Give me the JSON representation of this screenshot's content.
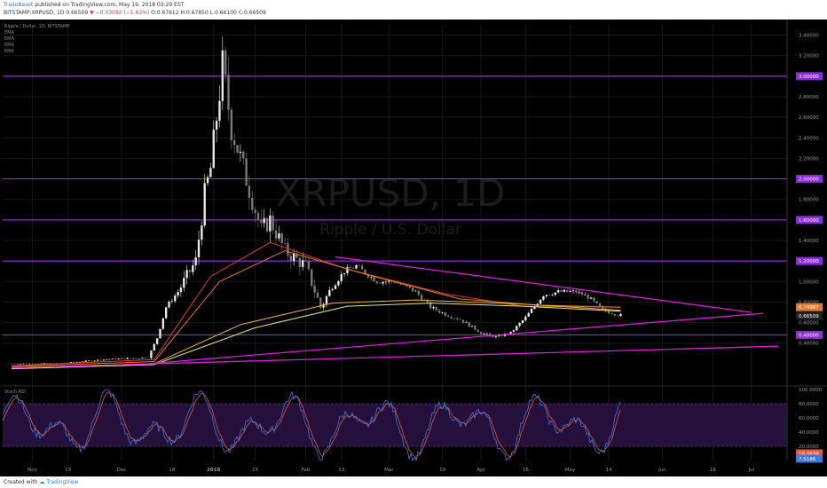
{
  "header": {
    "author": "TradeBeast",
    "published_text": "published on TradingView.com, May 19, 2018 03:29 EST",
    "symbol_line": "BITSTAMP:XRPUSD, 1D",
    "last_value": "0.66509",
    "change": "−0.03092 (−1.62%)",
    "ohlc": "O:0.67612 H:0.67850 L:0.66100 C:0.66509"
  },
  "legend": {
    "title": "Ripple / Dollar, 1D, BITSTAMP",
    "indicators": [
      "EMA",
      "EMA",
      "EMA",
      "EMA"
    ]
  },
  "watermark": {
    "symbol": "XRPUSD, 1D",
    "name": "Ripple / U.S. Dollar"
  },
  "oscillator": {
    "label": "Stoch RSI"
  },
  "footer": {
    "created_with": "Created with",
    "brand": "TradingView"
  },
  "colors": {
    "background": "#000000",
    "grid": "#171717",
    "candle_up": "#eaeaea",
    "candle_down": "#7a7a7a",
    "level_line": "#8a2be2",
    "trendline": "#d61fd6",
    "ema_red": "#e0411f",
    "ema_orange": "#e07a2b",
    "ema_gold": "#e8b830",
    "ema_yellow": "#f2e27a",
    "stoch_k": "#3a79e0",
    "stoch_d": "#e9583a",
    "stoch_band": "#24103a"
  },
  "chart_data": {
    "type": "candlestick",
    "symbol": "XRPUSD",
    "interval": "1D",
    "price_axis": {
      "ylim": [
        0.0,
        3.5
      ],
      "ticks": [
        "0.40000",
        "0.60000",
        "0.80000",
        "1.00000",
        "1.20000",
        "1.40000",
        "1.60000",
        "1.80000",
        "2.00000",
        "2.20000",
        "2.40000",
        "2.60000",
        "2.80000",
        "3.00000",
        "3.20000",
        "3.40000"
      ]
    },
    "time_axis": {
      "labels": [
        "Nov",
        "13",
        "Dec",
        "18",
        "2018",
        "15",
        "Feb",
        "13",
        "Mar",
        "19",
        "Apr",
        "16",
        "May",
        "14",
        "Jun",
        "18",
        "Jul"
      ]
    },
    "horizontal_levels": [
      "0.48000",
      "1.20000",
      "1.60000",
      "2.00000",
      "3.00000"
    ],
    "price_labels": [
      {
        "value": "0.74987",
        "color": "#e07a2b"
      },
      {
        "value": "0.66509",
        "color": "#222222"
      }
    ],
    "trendlines": [
      {
        "name": "upper",
        "from": [
          "2018-02-11",
          1.24
        ],
        "to": [
          "2018-07-01",
          0.7
        ]
      },
      {
        "name": "lower",
        "from": [
          "2017-12-10",
          0.2
        ],
        "to": [
          "2018-07-05",
          0.69
        ]
      },
      {
        "name": "base",
        "from": [
          "2017-10-25",
          0.16
        ],
        "to": [
          "2018-07-10",
          0.37
        ]
      }
    ],
    "anchors": [
      [
        "2017-10-25",
        0.2
      ],
      [
        "2017-11-10",
        0.2
      ],
      [
        "2017-11-25",
        0.24
      ],
      [
        "2017-12-10",
        0.26
      ],
      [
        "2017-12-13",
        0.45
      ],
      [
        "2017-12-16",
        0.75
      ],
      [
        "2017-12-20",
        0.9
      ],
      [
        "2017-12-23",
        1.05
      ],
      [
        "2017-12-26",
        1.2
      ],
      [
        "2017-12-29",
        1.85
      ],
      [
        "2017-12-31",
        2.1
      ],
      [
        "2018-01-04",
        3.1
      ],
      [
        "2018-01-07",
        2.5
      ],
      [
        "2018-01-12",
        2.0
      ],
      [
        "2018-01-17",
        1.5
      ],
      [
        "2018-01-20",
        1.6
      ],
      [
        "2018-01-25",
        1.3
      ],
      [
        "2018-02-01",
        1.15
      ],
      [
        "2018-02-06",
        0.75
      ],
      [
        "2018-02-10",
        0.95
      ],
      [
        "2018-02-14",
        1.1
      ],
      [
        "2018-02-18",
        1.15
      ],
      [
        "2018-02-25",
        1.0
      ],
      [
        "2018-03-03",
        1.0
      ],
      [
        "2018-03-10",
        0.9
      ],
      [
        "2018-03-15",
        0.75
      ],
      [
        "2018-03-20",
        0.68
      ],
      [
        "2018-03-25",
        0.63
      ],
      [
        "2018-04-01",
        0.5
      ],
      [
        "2018-04-06",
        0.46
      ],
      [
        "2018-04-11",
        0.5
      ],
      [
        "2018-04-16",
        0.65
      ],
      [
        "2018-04-22",
        0.87
      ],
      [
        "2018-04-27",
        0.9
      ],
      [
        "2018-05-03",
        0.9
      ],
      [
        "2018-05-07",
        0.85
      ],
      [
        "2018-05-12",
        0.72
      ],
      [
        "2018-05-18",
        0.67
      ]
    ],
    "ema_curves": [
      {
        "color": "#e0411f",
        "points": [
          [
            "2017-10-25",
            0.18
          ],
          [
            "2017-12-12",
            0.24
          ],
          [
            "2017-12-31",
            1.05
          ],
          [
            "2018-01-20",
            1.38
          ],
          [
            "2018-02-15",
            1.12
          ],
          [
            "2018-03-20",
            0.88
          ],
          [
            "2018-04-15",
            0.76
          ],
          [
            "2018-05-18",
            0.75
          ]
        ]
      },
      {
        "color": "#e07a2b",
        "points": [
          [
            "2017-10-25",
            0.17
          ],
          [
            "2017-12-12",
            0.22
          ],
          [
            "2018-01-03",
            1.0
          ],
          [
            "2018-01-25",
            1.3
          ],
          [
            "2018-02-20",
            1.08
          ],
          [
            "2018-03-25",
            0.83
          ],
          [
            "2018-04-20",
            0.77
          ],
          [
            "2018-05-18",
            0.75
          ]
        ]
      },
      {
        "color": "#e8b830",
        "points": [
          [
            "2017-10-25",
            0.16
          ],
          [
            "2017-12-12",
            0.2
          ],
          [
            "2018-01-10",
            0.58
          ],
          [
            "2018-02-10",
            0.79
          ],
          [
            "2018-03-10",
            0.82
          ],
          [
            "2018-04-15",
            0.78
          ],
          [
            "2018-05-18",
            0.72
          ]
        ]
      },
      {
        "color": "#f2e27a",
        "points": [
          [
            "2017-10-25",
            0.15
          ],
          [
            "2017-12-12",
            0.19
          ],
          [
            "2018-01-15",
            0.55
          ],
          [
            "2018-02-15",
            0.76
          ],
          [
            "2018-03-15",
            0.79
          ],
          [
            "2018-04-15",
            0.76
          ],
          [
            "2018-05-18",
            0.71
          ]
        ]
      }
    ],
    "stoch_rsi": {
      "ylim": [
        0,
        100
      ],
      "ticks": [
        "0.0000",
        "20.0000",
        "40.0000",
        "60.0000",
        "80.0000",
        "100.0000"
      ],
      "band": [
        20,
        80
      ],
      "value_labels": [
        {
          "value": "10.0634",
          "color": "#e9583a"
        },
        {
          "value": "7.5186",
          "color": "#3a79e0"
        }
      ]
    }
  }
}
